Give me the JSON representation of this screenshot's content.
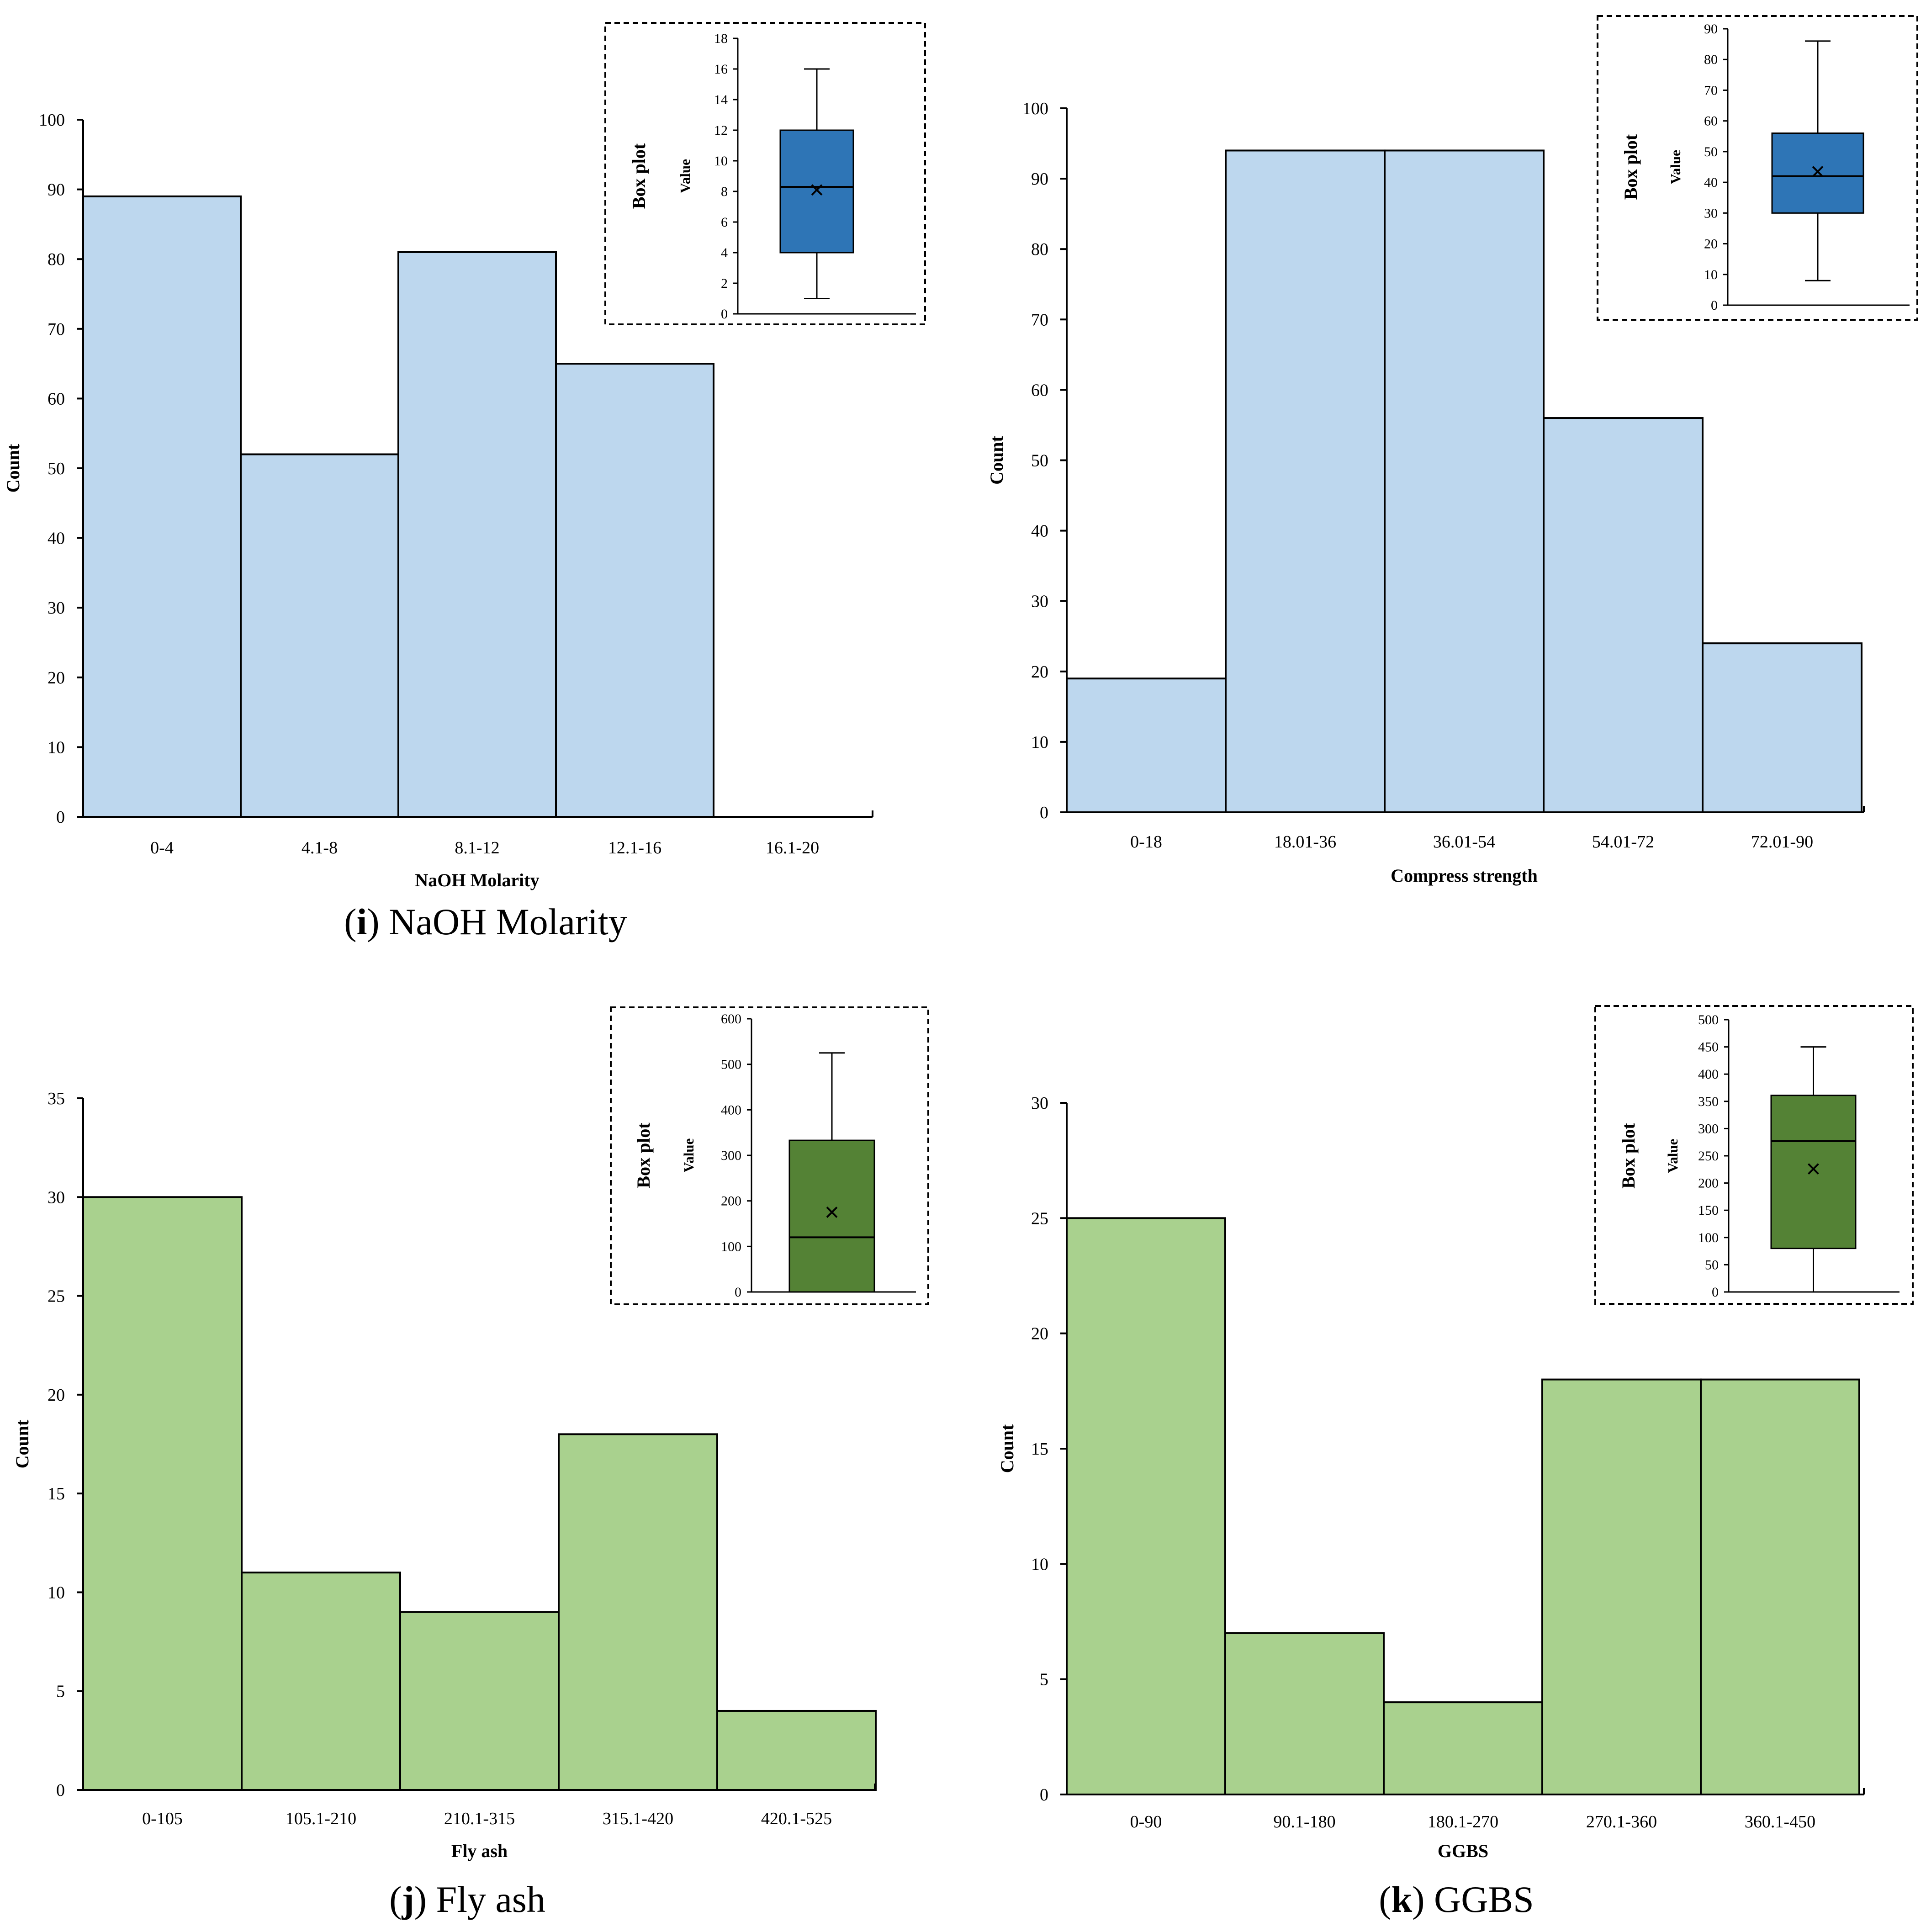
{
  "chart_data": [
    {
      "type": "bar",
      "caption": {
        "label": "i",
        "text": "NaOH Molarity"
      },
      "xlabel": "NaOH Molarity",
      "ylabel": "Count",
      "categories": [
        "0-4",
        "4.1-8",
        "8.1-12",
        "12.1-16",
        "16.1-20"
      ],
      "values": [
        89,
        52,
        81,
        65,
        0
      ],
      "ylim": [
        0,
        100
      ],
      "yticks": [
        0,
        10,
        20,
        30,
        40,
        50,
        60,
        70,
        80,
        90,
        100
      ],
      "bar_color": "#bdd7ee",
      "inset": {
        "title": "Box plot",
        "ylabel": "Value",
        "ylim": [
          0,
          18
        ],
        "yticks": [
          0,
          2,
          4,
          6,
          8,
          10,
          12,
          14,
          16,
          18
        ],
        "whisker_min": 1,
        "q1": 4,
        "median": 8.3,
        "q3": 12,
        "whisker_max": 16,
        "mean": 8.1,
        "box_color": "#2e75b6"
      }
    },
    {
      "type": "bar",
      "caption": null,
      "xlabel": "Compress strength",
      "ylabel": "Count",
      "categories": [
        "0-18",
        "18.01-36",
        "36.01-54",
        "54.01-72",
        "72.01-90"
      ],
      "values": [
        19,
        94,
        94,
        56,
        24
      ],
      "ylim": [
        0,
        100
      ],
      "yticks": [
        0,
        10,
        20,
        30,
        40,
        50,
        60,
        70,
        80,
        90,
        100
      ],
      "bar_color": "#bdd7ee",
      "inset": {
        "title": "Box plot",
        "ylabel": "Value",
        "ylim": [
          0,
          90
        ],
        "yticks": [
          0,
          10,
          20,
          30,
          40,
          50,
          60,
          70,
          80,
          90
        ],
        "whisker_min": 8,
        "q1": 30,
        "median": 42,
        "q3": 56,
        "whisker_max": 86,
        "mean": 43.5,
        "box_color": "#2e75b6"
      }
    },
    {
      "type": "bar",
      "caption": {
        "label": "j",
        "text": "Fly ash"
      },
      "xlabel": "Fly ash",
      "ylabel": "Count",
      "categories": [
        "0-105",
        "105.1-210",
        "210.1-315",
        "315.1-420",
        "420.1-525"
      ],
      "values": [
        30,
        11,
        9,
        18,
        4
      ],
      "ylim": [
        0,
        35
      ],
      "yticks": [
        0,
        5,
        10,
        15,
        20,
        25,
        30,
        35
      ],
      "bar_color": "#a9d18e",
      "inset": {
        "title": "Box plot",
        "ylabel": "Value",
        "ylim": [
          0,
          600
        ],
        "yticks": [
          0,
          100,
          200,
          300,
          400,
          500,
          600
        ],
        "whisker_min": 0,
        "q1": 0,
        "median": 120,
        "q3": 333,
        "whisker_max": 525,
        "mean": 175,
        "box_color": "#548235"
      }
    },
    {
      "type": "bar",
      "caption": {
        "label": "k",
        "text": "GGBS"
      },
      "xlabel": "GGBS",
      "ylabel": "Count",
      "categories": [
        "0-90",
        "90.1-180",
        "180.1-270",
        "270.1-360",
        "360.1-450"
      ],
      "values": [
        25,
        7,
        4,
        18,
        18
      ],
      "ylim": [
        0,
        30
      ],
      "yticks": [
        0,
        5,
        10,
        15,
        20,
        25,
        30
      ],
      "bar_color": "#a9d18e",
      "inset": {
        "title": "Box plot",
        "ylabel": "Value",
        "ylim": [
          0,
          500
        ],
        "yticks": [
          0,
          50,
          100,
          150,
          200,
          250,
          300,
          350,
          400,
          450,
          500
        ],
        "whisker_min": 0,
        "q1": 80,
        "median": 277,
        "q3": 361,
        "whisker_max": 450,
        "mean": 226,
        "box_color": "#548235"
      }
    }
  ]
}
